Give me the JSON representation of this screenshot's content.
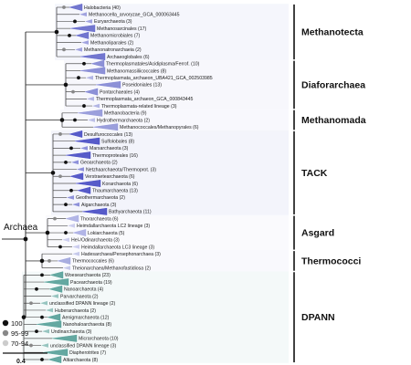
{
  "root_label": "Archaea",
  "scale_label": "0.4",
  "legend": [
    {
      "label": "100",
      "color": "#111111"
    },
    {
      "label": "95-99",
      "color": "#888888"
    },
    {
      "label": "70-94",
      "color": "#cccccc"
    }
  ],
  "clades": [
    {
      "label": "Methanotecta",
      "color": "#5b5fc7"
    },
    {
      "label": "Diaforarchaea",
      "color": "#7a7fd0"
    },
    {
      "label": "Methanomada",
      "color": "#8b8fd6"
    },
    {
      "label": "TACK",
      "color": "#3b3fc0"
    },
    {
      "label": "Asgard",
      "color": "#a5a8e2"
    },
    {
      "label": "Thermococci",
      "color": "#9aa0da"
    },
    {
      "label": "DPANN",
      "color": "#4a9a92"
    }
  ],
  "leaves": [
    {
      "label": "Halobacteria (40)",
      "clade": 0
    },
    {
      "label": "Methanocella_arvoryzae_GCA_000063445",
      "clade": 0
    },
    {
      "label": "Euryarchaeota (3)",
      "clade": 0
    },
    {
      "label": "Methanosarcinales (17)",
      "clade": 0
    },
    {
      "label": "Methanomicrobiales (7)",
      "clade": 0
    },
    {
      "label": "Methanoliparales (2)",
      "clade": 0
    },
    {
      "label": "Methanonatronarchaeia (2)",
      "clade": 0
    },
    {
      "label": "Archaeoglobales (6)",
      "clade": 0
    },
    {
      "label": "Thermoplasmatales/Acidiplasma/Ferrof. (10)",
      "clade": 1
    },
    {
      "label": "Methanomassiliicoccales (8)",
      "clade": 1
    },
    {
      "label": "Thermoplasmata_archaeon_UBA421_GCA_002503985",
      "clade": 1
    },
    {
      "label": "Poseidoniales (13)",
      "clade": 1
    },
    {
      "label": "Pontarchaeales (4)",
      "clade": 1
    },
    {
      "label": "Thermoplasmata_archaeon_GCA_000843445",
      "clade": 1
    },
    {
      "label": "Thermoplasmata-related lineage (3)",
      "clade": 1
    },
    {
      "label": "Methanobacteria (9)",
      "clade": 2
    },
    {
      "label": "Hydrothermarchaeota (2)",
      "clade": 2
    },
    {
      "label": "Methanococcales/Methanopyrales (6)",
      "clade": 2
    },
    {
      "label": "Desulfurococcales (13)",
      "clade": 3
    },
    {
      "label": "Sulfolobales (8)",
      "clade": 3
    },
    {
      "label": "Marsarchaeota (3)",
      "clade": 3
    },
    {
      "label": "Thermoproteales (16)",
      "clade": 3
    },
    {
      "label": "Geoarchaeota (2)",
      "clade": 3
    },
    {
      "label": "Netzhaarchaeota/Thermoprot. (3)",
      "clade": 3
    },
    {
      "label": "Verstraetearchaeota (6)",
      "clade": 3
    },
    {
      "label": "Korarchaeota (6)",
      "clade": 3
    },
    {
      "label": "Thaumarchaeota (13)",
      "clade": 3
    },
    {
      "label": "Geothermarchaeota (2)",
      "clade": 3
    },
    {
      "label": "Aigarchaeota (3)",
      "clade": 3
    },
    {
      "label": "Bathyarchaeota (11)",
      "clade": 3
    },
    {
      "label": "Thorarchaeota (6)",
      "clade": 4
    },
    {
      "label": "Heimdallarchaeota LC2 lineage (3)",
      "clade": 4
    },
    {
      "label": "Lokiarchaeota (5)",
      "clade": 4
    },
    {
      "label": "Hel-/Odinarchaeota (3)",
      "clade": 4
    },
    {
      "label": "Heimdallarchaeota LC3 lineage (3)",
      "clade": 4
    },
    {
      "label": "Hadesarchaea/Persephonarchaea (3)",
      "clade": 5
    },
    {
      "label": "Thermococcales (6)",
      "clade": 5
    },
    {
      "label": "Theionarchaea/Methanofastidiosa (2)",
      "clade": 5
    },
    {
      "label": "Woesearchaeota (23)",
      "clade": 6
    },
    {
      "label": "Pacearchaeota (19)",
      "clade": 6
    },
    {
      "label": "Nanoarchaeota (4)",
      "clade": 6
    },
    {
      "label": "Parvarchaeota (2)",
      "clade": 6
    },
    {
      "label": "unclassified DPANN lineage (2)",
      "clade": 6
    },
    {
      "label": "Huberarchaeota (2)",
      "clade": 6
    },
    {
      "label": "Aenigmarchaeota (12)",
      "clade": 6
    },
    {
      "label": "Nanohaloarchaeota (8)",
      "clade": 6
    },
    {
      "label": "Undinarchaeota (3)",
      "clade": 6
    },
    {
      "label": "Micrarchaeota (10)",
      "clade": 6
    },
    {
      "label": "unclassified DPANN lineage (3)",
      "clade": 6
    },
    {
      "label": "Diapherotrites (7)",
      "clade": 6
    },
    {
      "label": "Altiarchaeota (8)",
      "clade": 6
    }
  ]
}
